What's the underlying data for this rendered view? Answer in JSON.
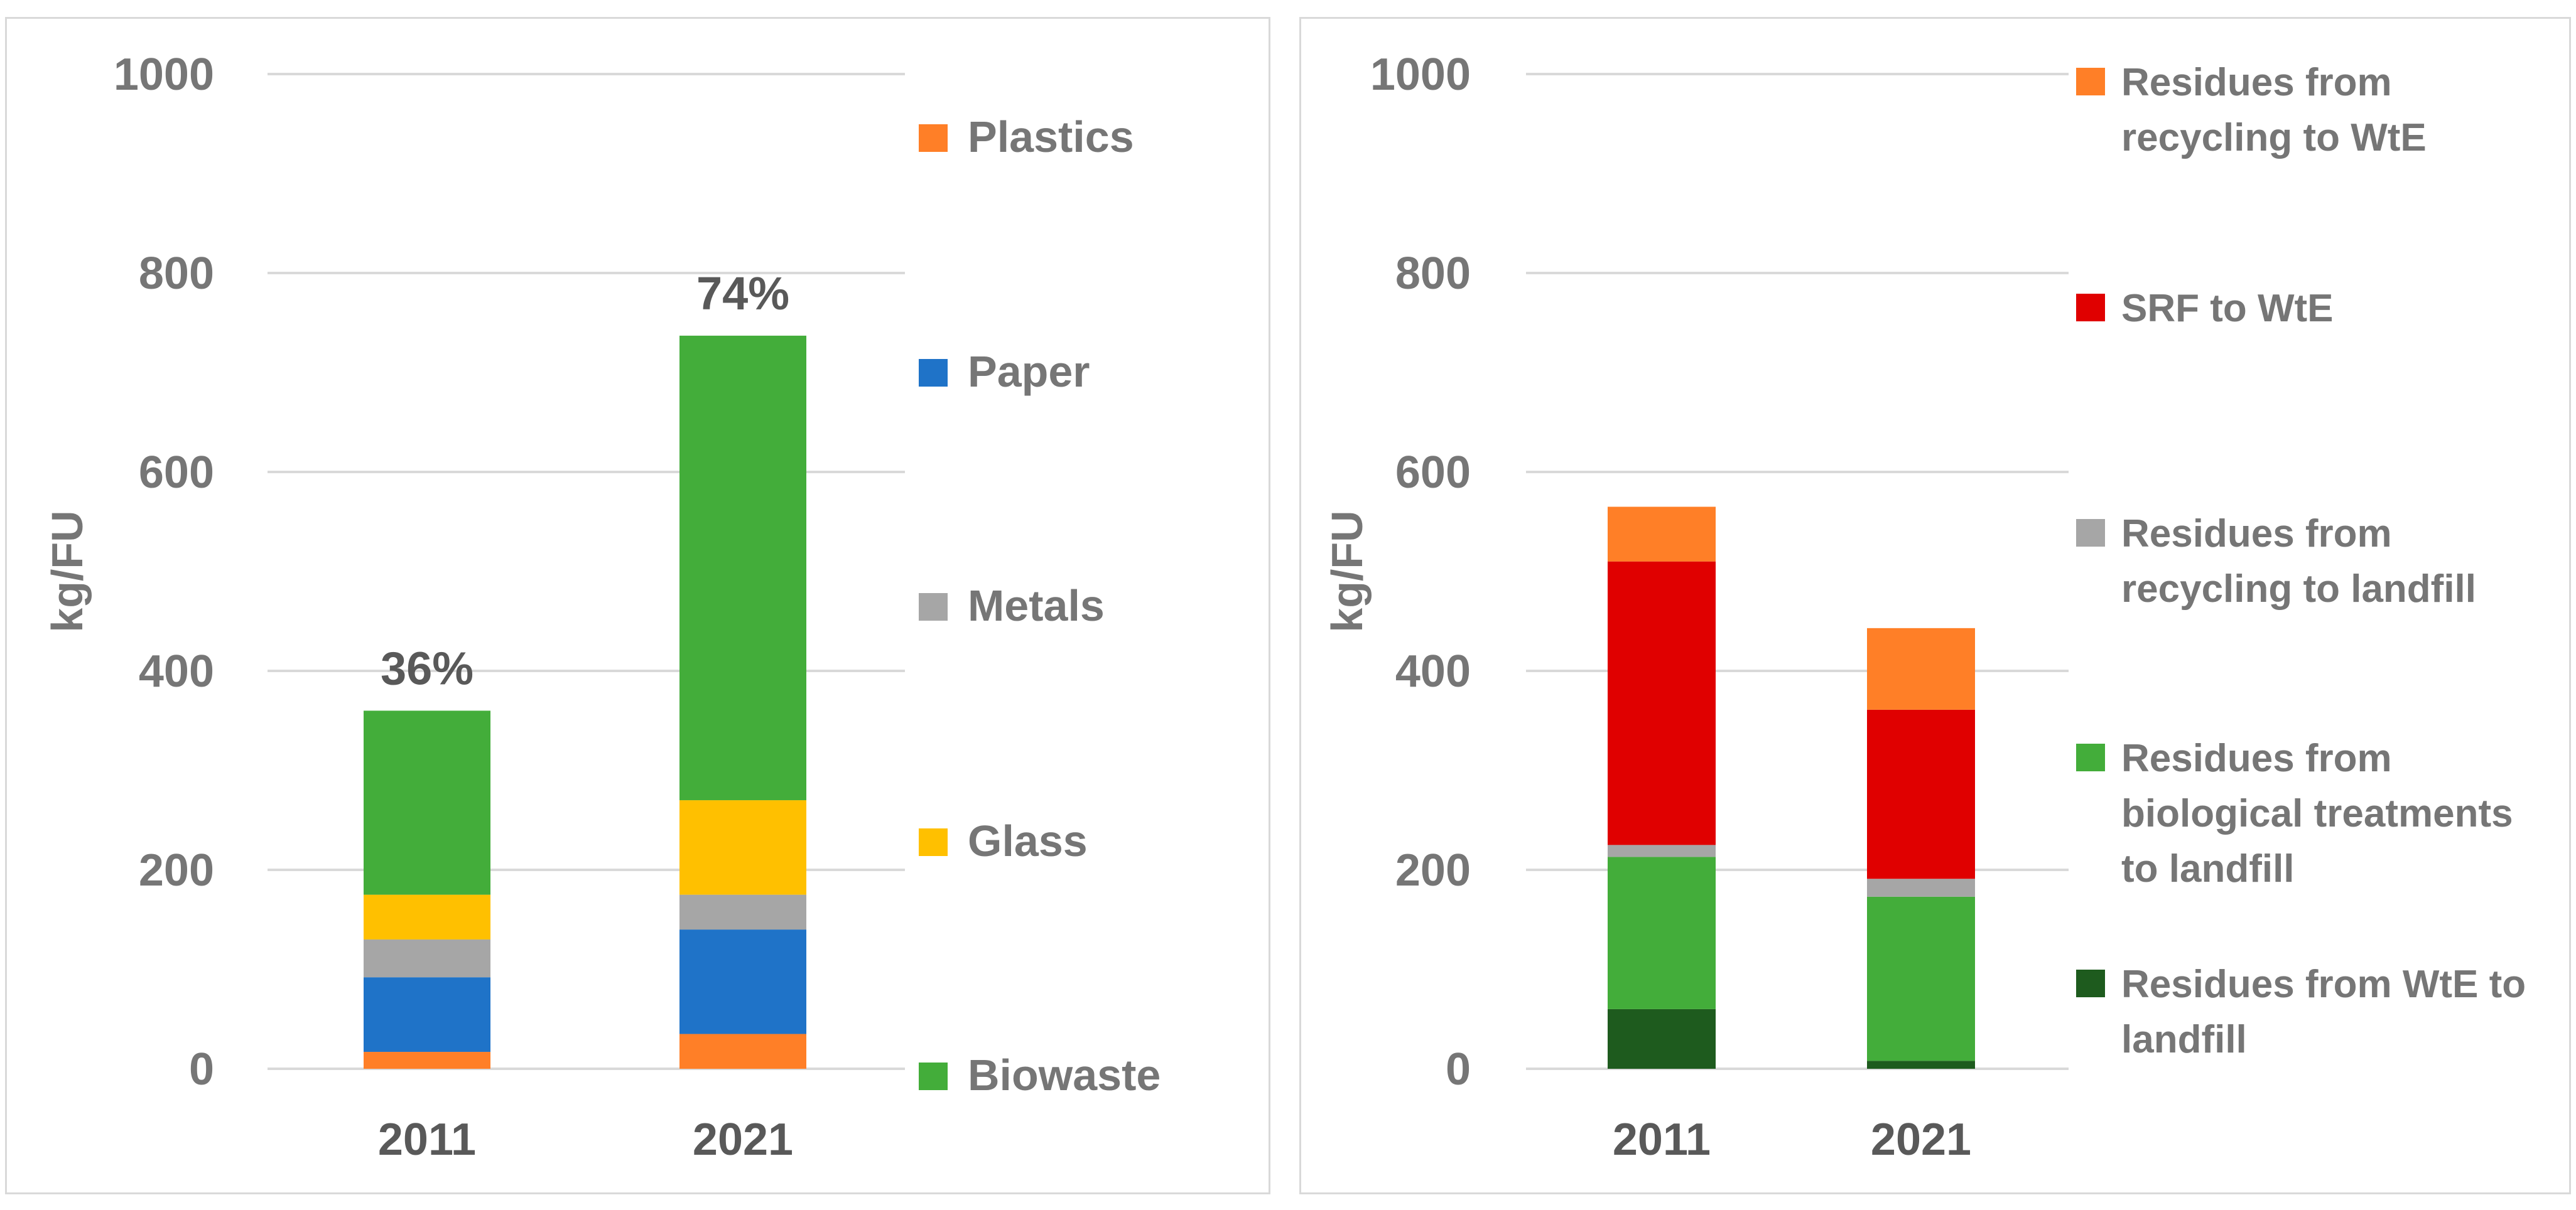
{
  "chart_data": [
    {
      "type": "bar",
      "stacked": true,
      "ylabel": "kg/FU",
      "ylim": [
        0,
        1000
      ],
      "yticks": [
        "0",
        "200",
        "400",
        "600",
        "800",
        "1000"
      ],
      "categories": [
        "2011",
        "2021"
      ],
      "series": [
        {
          "name": "Plastics",
          "color": "#ff7f27",
          "values": [
            17,
            35
          ]
        },
        {
          "name": "Paper",
          "color": "#1f73c8",
          "values": [
            75,
            105
          ]
        },
        {
          "name": "Metals",
          "color": "#a6a6a6",
          "values": [
            38,
            35
          ]
        },
        {
          "name": "Glass",
          "color": "#ffc000",
          "values": [
            45,
            95
          ]
        },
        {
          "name": "Biowaste",
          "color": "#43ad3a",
          "values": [
            185,
            467
          ]
        }
      ],
      "annotations": [
        "36%",
        "74%"
      ]
    },
    {
      "type": "bar",
      "stacked": true,
      "ylabel": "kg/FU",
      "ylim": [
        0,
        1000
      ],
      "yticks": [
        "0",
        "200",
        "400",
        "600",
        "800",
        "1000"
      ],
      "categories": [
        "2011",
        "2021"
      ],
      "series": [
        {
          "name": "Residues from WtE to landfill",
          "legend_lines": [
            "Residues from WtE to",
            "landfill"
          ],
          "color": "#1e5b1e",
          "values": [
            60,
            8
          ]
        },
        {
          "name": "Residues from biological treatments to landfill",
          "legend_lines": [
            "Residues from",
            "biological treatments",
            "to landfill"
          ],
          "color": "#43ad3a",
          "values": [
            153,
            165
          ]
        },
        {
          "name": "Residues from recycling to landfill",
          "legend_lines": [
            "Residues from",
            "recycling to landfill"
          ],
          "color": "#a6a6a6",
          "values": [
            12,
            18
          ]
        },
        {
          "name": "SRF to WtE",
          "legend_lines": [
            "SRF to WtE"
          ],
          "color": "#e00000",
          "values": [
            285,
            170
          ]
        },
        {
          "name": "Residues from recycling to WtE",
          "legend_lines": [
            "Residues from",
            "recycling to WtE"
          ],
          "color": "#ff7f27",
          "values": [
            55,
            82
          ]
        }
      ]
    }
  ]
}
